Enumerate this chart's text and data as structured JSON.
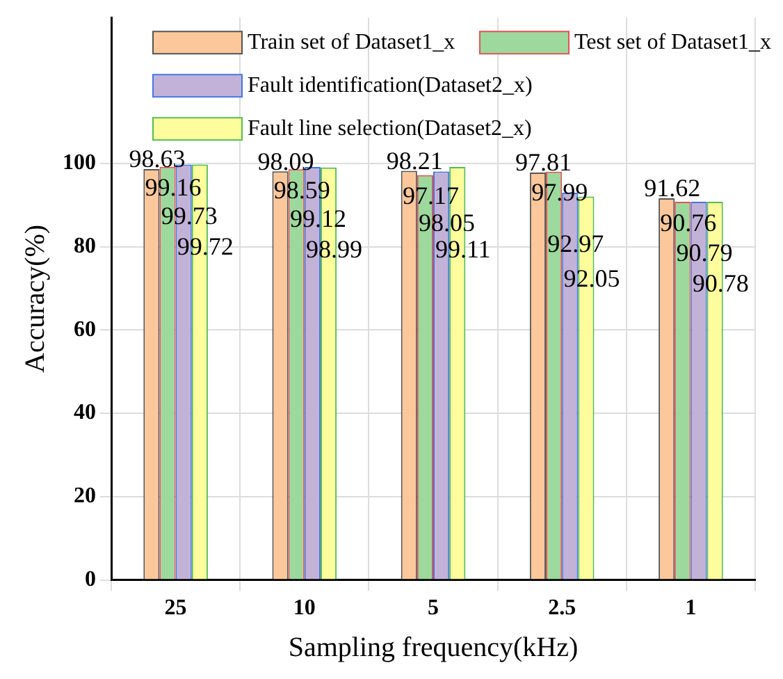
{
  "chart_data": {
    "type": "bar",
    "xlabel": "Sampling frequency(kHz)",
    "ylabel": "Accuracy(%)",
    "categories": [
      "25",
      "10",
      "5",
      "2.5",
      "1"
    ],
    "series": [
      {
        "name": "Train set of Dataset1_x",
        "color": "#fcc89b",
        "values": [
          98.63,
          98.09,
          98.21,
          97.81,
          91.62
        ]
      },
      {
        "name": "Test set of Dataset1_x",
        "color": "#9dd89d",
        "values": [
          99.16,
          98.59,
          97.17,
          97.99,
          90.76
        ]
      },
      {
        "name": "Fault identification(Dataset2_x)",
        "color": "#c2b2d8",
        "values": [
          99.73,
          99.12,
          98.05,
          92.97,
          90.79
        ]
      },
      {
        "name": "Fault line selection(Dataset2_x)",
        "color": "#fdfd9d",
        "values": [
          99.72,
          98.99,
          99.11,
          92.05,
          90.78
        ]
      }
    ],
    "ylim": [
      0,
      135
    ],
    "yticks": [
      0,
      20,
      40,
      60,
      80,
      100
    ],
    "grid": true,
    "legend": "top",
    "data_labels": true
  }
}
